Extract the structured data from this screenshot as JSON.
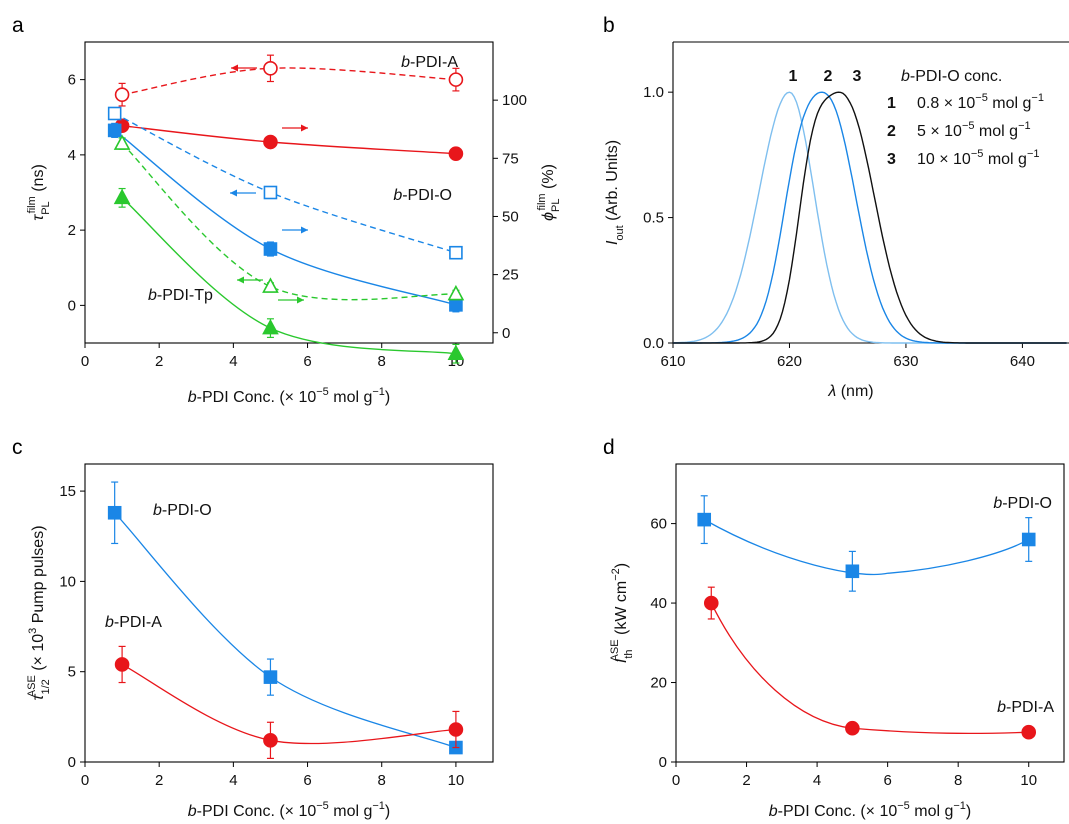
{
  "colors": {
    "red": "#e8161b",
    "blue": "#1a86e6",
    "green": "#2ac82e",
    "light_blue": "#7fbfef",
    "black": "#111111"
  },
  "chart_data": [
    {
      "panel": "a",
      "type": "scatter",
      "xlabel": {
        "pre": "b",
        "mid": "-PDI Conc. (× 10",
        "sup": "−5",
        "post": " mol g",
        "sup2": "−1",
        "end": ")"
      },
      "ylabel_left": {
        "main": "τ",
        "sub": "PL",
        "sup": "film",
        "unit": " (ns)"
      },
      "ylabel_right": {
        "main": "ϕ",
        "sub": "PL",
        "sup": "film",
        "unit": " (%)"
      },
      "xlim": [
        0,
        11
      ],
      "ylim_left": [
        -1,
        7
      ],
      "ylim_right": [
        -4.4,
        125
      ],
      "xticks": [
        "0",
        "2",
        "4",
        "6",
        "8",
        "10"
      ],
      "yticks_left": [
        "0",
        "2",
        "4",
        "6"
      ],
      "yticks_right": [
        "0",
        "25",
        "50",
        "75",
        "100"
      ],
      "series": [
        {
          "name_pre": "b",
          "name": "-PDI-A",
          "color": "red",
          "kind": "tau",
          "x": [
            1,
            5,
            10
          ],
          "y": [
            5.6,
            6.3,
            6.0
          ],
          "err": [
            0.3,
            0.35,
            0.3
          ]
        },
        {
          "name_pre": "b",
          "name": "-PDI-A",
          "color": "red",
          "kind": "phi",
          "x": [
            1,
            5,
            10
          ],
          "y": [
            89,
            82,
            77
          ],
          "err": [
            1.5,
            1.5,
            2.5
          ]
        },
        {
          "name_pre": "b",
          "name": "-PDI-O",
          "color": "blue",
          "kind": "tau",
          "x": [
            0.8,
            5,
            10
          ],
          "y": [
            5.1,
            3.0,
            1.4
          ],
          "err": [
            0.15,
            0.1,
            0.1
          ]
        },
        {
          "name_pre": "b",
          "name": "-PDI-O",
          "color": "blue",
          "kind": "phi",
          "x": [
            0.8,
            5,
            10
          ],
          "y": [
            87,
            36,
            12
          ],
          "err": [
            3,
            3,
            3
          ]
        },
        {
          "name_pre": "b",
          "name": "-PDI-Tp",
          "color": "green",
          "kind": "tau",
          "x": [
            1,
            5,
            10
          ],
          "y": [
            4.3,
            0.5,
            0.3
          ],
          "err": [
            0.15,
            0.1,
            0.1
          ]
        },
        {
          "name_pre": "b",
          "name": "-PDI-Tp",
          "color": "green",
          "kind": "phi",
          "x": [
            1,
            5,
            10
          ],
          "y": [
            58,
            2,
            -9
          ],
          "err": [
            4,
            4,
            4
          ]
        }
      ]
    },
    {
      "panel": "b",
      "type": "line",
      "xlabel": {
        "main": "λ",
        "unit": " (nm)"
      },
      "ylabel": {
        "main": "I",
        "sub": "out",
        "unit": " (Arb. Units)"
      },
      "xlim": [
        610,
        644
      ],
      "ylim": [
        0,
        1.2
      ],
      "xticks": [
        "610",
        "620",
        "630",
        "640"
      ],
      "yticks": [
        "0.0",
        "0.5",
        "1.0"
      ],
      "legend_title": {
        "pre": "b",
        "mid": "-PDI-O conc."
      },
      "peak_labels": [
        "1",
        "2",
        "3"
      ],
      "legend": [
        {
          "num": "1",
          "text": "0.8 × 10",
          "sup": "−5",
          "post": " mol g",
          "sup2": "−1"
        },
        {
          "num": "2",
          "text": "5 × 10",
          "sup": "−5",
          "post": " mol g",
          "sup2": "−1"
        },
        {
          "num": "3",
          "text": "10 × 10",
          "sup": "−5",
          "post": " mol g",
          "sup2": "−1"
        }
      ],
      "series": [
        {
          "label": "1",
          "color": "light_blue",
          "peak": 620.0
        },
        {
          "label": "2",
          "color": "blue",
          "peak": 623.3
        },
        {
          "label": "3",
          "color": "black",
          "peak": 624.8
        }
      ]
    },
    {
      "panel": "c",
      "type": "scatter",
      "xlabel": {
        "pre": "b",
        "mid": "-PDI Conc. (× 10",
        "sup": "−5",
        "post": " mol g",
        "sup2": "−1",
        "end": ")"
      },
      "ylabel": {
        "main": "τ",
        "sub": "1/2",
        "sup": "ASE",
        "unit": " (× 10",
        "usup": "3",
        "end": " Pump pulses)"
      },
      "xlim": [
        0,
        11
      ],
      "ylim": [
        0,
        16.5
      ],
      "xticks": [
        "0",
        "2",
        "4",
        "6",
        "8",
        "10"
      ],
      "yticks": [
        "0",
        "5",
        "10",
        "15"
      ],
      "series": [
        {
          "name_pre": "b",
          "name": "-PDI-O",
          "color": "blue",
          "x": [
            0.8,
            5,
            10
          ],
          "y": [
            13.8,
            4.7,
            0.8
          ],
          "err": [
            1.7,
            1.0,
            0.3
          ]
        },
        {
          "name_pre": "b",
          "name": "-PDI-A",
          "color": "red",
          "x": [
            1,
            5,
            10
          ],
          "y": [
            5.4,
            1.2,
            1.8
          ],
          "err": [
            1.0,
            1.0,
            1.0
          ]
        }
      ]
    },
    {
      "panel": "d",
      "type": "scatter",
      "xlabel": {
        "pre": "b",
        "mid": "-PDI Conc. (× 10",
        "sup": "−5",
        "post": " mol g",
        "sup2": "−1",
        "end": ")"
      },
      "ylabel": {
        "main": "I",
        "sub": "th",
        "sup": "ASE",
        "unit": " (kW cm",
        "usup": "−2",
        "end": ")"
      },
      "xlim": [
        0,
        11
      ],
      "ylim": [
        0,
        75
      ],
      "xticks": [
        "0",
        "2",
        "4",
        "6",
        "8",
        "10"
      ],
      "yticks": [
        "0",
        "20",
        "40",
        "60"
      ],
      "series": [
        {
          "name_pre": "b",
          "name": "-PDI-O",
          "color": "blue",
          "x": [
            0.8,
            5,
            10
          ],
          "y": [
            61,
            48,
            56
          ],
          "err": [
            6,
            5,
            5.5
          ]
        },
        {
          "name_pre": "b",
          "name": "-PDI-A",
          "color": "red",
          "x": [
            1,
            5,
            10
          ],
          "y": [
            40,
            8.5,
            7.5
          ],
          "err": [
            4,
            0,
            0
          ]
        }
      ]
    }
  ]
}
